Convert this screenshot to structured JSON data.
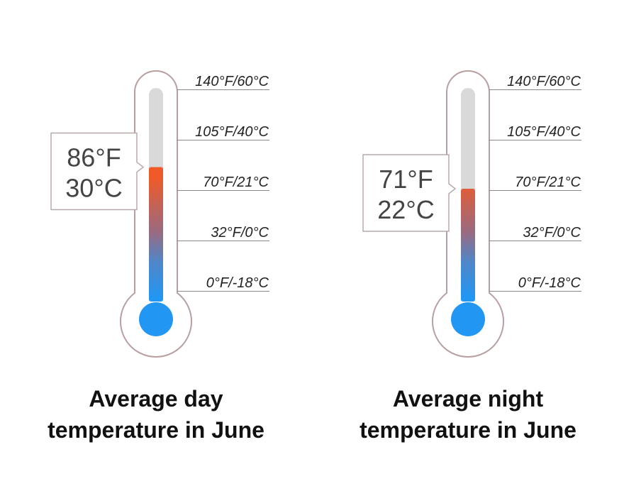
{
  "chart_data": [
    {
      "type": "thermometer",
      "title": "Average day temperature in June",
      "title_lines": [
        "Average day",
        "temperature in June"
      ],
      "value_f": 86,
      "value_c": 30,
      "readout_f": "86°F",
      "readout_c": "30°C",
      "scale": [
        {
          "label": "140°F/60°C",
          "f": 140
        },
        {
          "label": "105°F/40°C",
          "f": 105
        },
        {
          "label": "70°F/21°C",
          "f": 70
        },
        {
          "label": "32°F/0°C",
          "f": 32
        },
        {
          "label": "0°F/-18°C",
          "f": 0
        }
      ]
    },
    {
      "type": "thermometer",
      "title": "Average night temperature in June",
      "title_lines": [
        "Average night",
        "temperature in June"
      ],
      "value_f": 71,
      "value_c": 22,
      "readout_f": "71°F",
      "readout_c": "22°C",
      "scale": [
        {
          "label": "140°F/60°C",
          "f": 140
        },
        {
          "label": "105°F/40°C",
          "f": 105
        },
        {
          "label": "70°F/21°C",
          "f": 70
        },
        {
          "label": "32°F/0°C",
          "f": 32
        },
        {
          "label": "0°F/-18°C",
          "f": 0
        }
      ]
    }
  ],
  "colors": {
    "outline": "#b89f9f",
    "tube_empty": "#d9d9d9",
    "cold": "#2196f3",
    "hot": "#f05a28",
    "scale_line": "#888888",
    "label_text": "#222222",
    "readout_text": "#444444",
    "callout_border": "#b8a9a9"
  }
}
